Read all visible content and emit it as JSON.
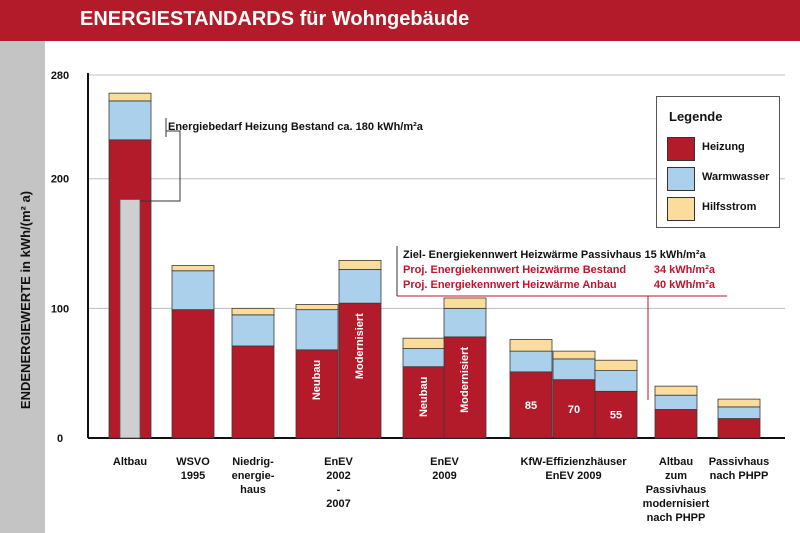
{
  "header": {
    "title": "ENERGIESTANDARDS für Wohngebäude"
  },
  "colors": {
    "heizung": "#b31b2a",
    "warmwasser": "#abd0eb",
    "hilfsstrom": "#fbdc9c",
    "altbau_inner": "#cfcfcf",
    "accent": "#b31b2a",
    "annotation_red": "#c0142c"
  },
  "chart_data": {
    "type": "bar",
    "stacked": true,
    "title": "ENERGIESTANDARDS für Wohngebäude",
    "ylabel": "ENDENERGIEWERTE in kWh/(m² a)",
    "xlabel": "",
    "ylim": [
      0,
      280
    ],
    "yticks": [
      0,
      100,
      200,
      280
    ],
    "grid": true,
    "legend": {
      "title": "Legende",
      "position": "top-right",
      "entries": [
        "Heizung",
        "Warmwasser",
        "Hilfsstrom"
      ]
    },
    "groups": [
      {
        "label": "Altbau",
        "bars": [
          {
            "heizung": 230,
            "warmwasser": 30,
            "hilfsstrom": 6,
            "bar_label": ""
          }
        ]
      },
      {
        "label": "WSVO\n1995",
        "bars": [
          {
            "heizung": 99,
            "warmwasser": 30,
            "hilfsstrom": 4,
            "bar_label": ""
          }
        ]
      },
      {
        "label": "Niedrig-\nenergie-\nhaus",
        "bars": [
          {
            "heizung": 71,
            "warmwasser": 24,
            "hilfsstrom": 5,
            "bar_label": ""
          }
        ]
      },
      {
        "label": "EnEV\n2002\n-\n2007",
        "bars": [
          {
            "heizung": 68,
            "warmwasser": 31,
            "hilfsstrom": 4,
            "bar_label": "Neubau"
          },
          {
            "heizung": 104,
            "warmwasser": 26,
            "hilfsstrom": 7,
            "bar_label": "Modernisiert"
          }
        ]
      },
      {
        "label": "EnEV\n2009",
        "bars": [
          {
            "heizung": 55,
            "warmwasser": 14,
            "hilfsstrom": 8,
            "bar_label": "Neubau"
          },
          {
            "heizung": 78,
            "warmwasser": 22,
            "hilfsstrom": 8,
            "bar_label": "Modernisiert"
          }
        ]
      },
      {
        "label": "KfW-Effizienzhäuser\nEnEV 2009",
        "bars": [
          {
            "heizung": 51,
            "warmwasser": 16,
            "hilfsstrom": 9,
            "bar_label": "85"
          },
          {
            "heizung": 45,
            "warmwasser": 16,
            "hilfsstrom": 6,
            "bar_label": "70"
          },
          {
            "heizung": 36,
            "warmwasser": 16,
            "hilfsstrom": 8,
            "bar_label": "55"
          }
        ]
      },
      {
        "label": "Altbau\nzum\nPassivhaus\nmodernisiert\nnach PHPP",
        "bars": [
          {
            "heizung": 22,
            "warmwasser": 11,
            "hilfsstrom": 7,
            "bar_label": ""
          }
        ]
      },
      {
        "label": "Passivhaus\nnach PHPP",
        "bars": [
          {
            "heizung": 15,
            "warmwasser": 9,
            "hilfsstrom": 6,
            "bar_label": ""
          }
        ]
      }
    ],
    "altbau_inner_value": 184,
    "annotations": {
      "bestand": "Energiebedarf Heizung Bestand ca. 180 kWh/m²a",
      "ziel": "Ziel- Energiekennwert Heizwärme Passivhaus 15 kWh/m²a",
      "proj_bestand_label": "Proj. Energiekennwert Heizwärme Bestand",
      "proj_bestand_value": "34 kWh/m²a",
      "proj_anbau_label": "Proj.  Energiekennwert Heizwärme Anbau",
      "proj_anbau_value": "40 kWh/m²a"
    }
  }
}
